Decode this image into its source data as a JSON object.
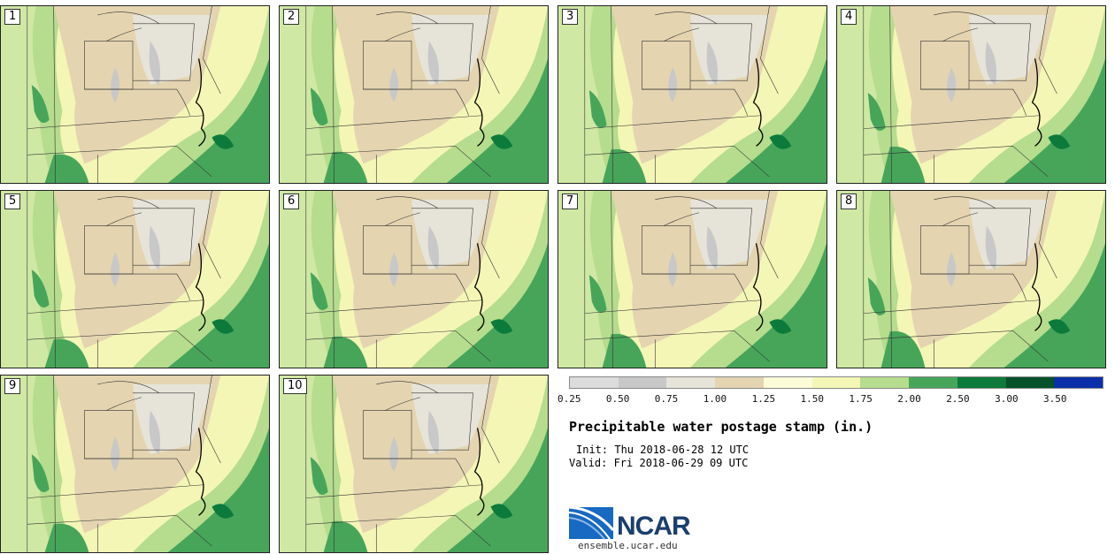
{
  "panels": [
    {
      "label": "1"
    },
    {
      "label": "2"
    },
    {
      "label": "3"
    },
    {
      "label": "4"
    },
    {
      "label": "5"
    },
    {
      "label": "6"
    },
    {
      "label": "7"
    },
    {
      "label": "8"
    },
    {
      "label": "9"
    },
    {
      "label": "10"
    }
  ],
  "colorbar": {
    "colors": [
      "#dcdcdc",
      "#c8c8c8",
      "#e6e4d8",
      "#e4d4b0",
      "#fdfcd8",
      "#f4f6b6",
      "#b6dc8e",
      "#47a55a",
      "#0b7a3a",
      "#05512a",
      "#0b2fa8"
    ],
    "labels": [
      "0.25",
      "0.50",
      "0.75",
      "1.00",
      "1.25",
      "1.50",
      "1.75",
      "2.00",
      "2.50",
      "3.00",
      "3.50"
    ]
  },
  "title": "Precipitable water postage stamp (in.)",
  "init": "Init: Thu 2018-06-28 12 UTC",
  "valid": "Valid: Fri 2018-06-29 09 UTC",
  "logo": {
    "name": "NCAR",
    "url": "ensemble.ucar.edu"
  }
}
